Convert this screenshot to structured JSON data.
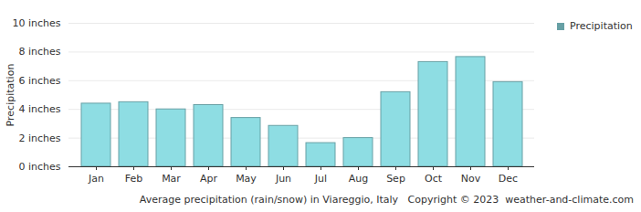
{
  "chart_data": {
    "type": "bar",
    "caption": "Average precipitation (rain/snow) in Viareggio, Italy   Copyright © 2023  weather-and-climate.com",
    "y_label": "Precipitation",
    "categories": [
      "Jan",
      "Feb",
      "Mar",
      "Apr",
      "May",
      "Jun",
      "Jul",
      "Aug",
      "Sep",
      "Oct",
      "Nov",
      "Dec"
    ],
    "series": [
      {
        "name": "Precipitation",
        "color": "#8edde3",
        "values": [
          4.4,
          4.5,
          4.0,
          4.3,
          3.4,
          2.85,
          1.65,
          2.0,
          5.2,
          7.3,
          7.65,
          5.9
        ]
      }
    ],
    "ylim": [
      0,
      10
    ],
    "yticks": [
      {
        "value": 0,
        "label": "0 inches"
      },
      {
        "value": 2,
        "label": "2 inches"
      },
      {
        "value": 4,
        "label": "4 inches"
      },
      {
        "value": 6,
        "label": "6 inches"
      },
      {
        "value": 8,
        "label": "8 inches"
      },
      {
        "value": 10,
        "label": "10 inches"
      }
    ],
    "grid": true,
    "legend": "top-right"
  }
}
